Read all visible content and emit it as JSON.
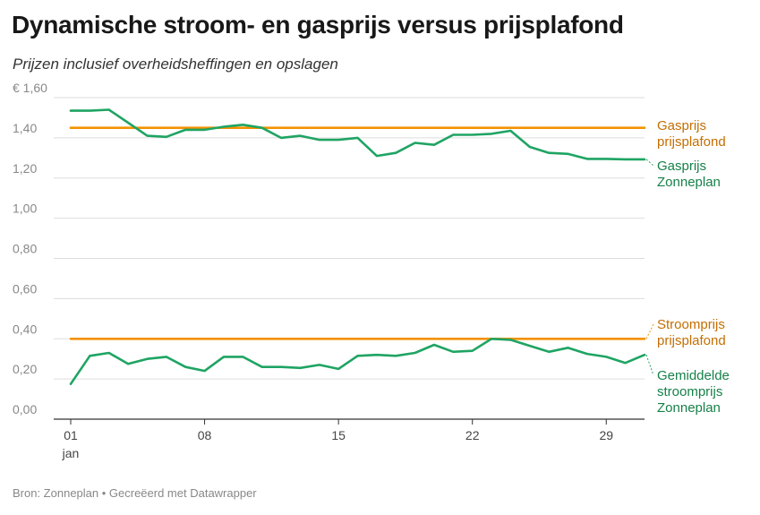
{
  "header": {
    "title": "Dynamische stroom- en gasprijs versus prijsplafond",
    "subtitle": "Prijzen inclusief overheidsheffingen en opslagen"
  },
  "footer": {
    "source": "Bron: Zonneplan • Gecreëerd met Datawrapper"
  },
  "colors": {
    "cap": "#f39200",
    "cap_label": "#c46e00",
    "zonneplan": "#1fa463",
    "zonneplan_label": "#168049",
    "grid": "#dddddd",
    "baseline": "#333333"
  },
  "chart_data": {
    "type": "line",
    "title": "Dynamische stroom- en gasprijs versus prijsplafond",
    "subtitle": "Prijzen inclusief overheidsheffingen en opslagen",
    "x": [
      1,
      2,
      3,
      4,
      5,
      6,
      7,
      8,
      9,
      10,
      11,
      12,
      13,
      14,
      15,
      16,
      17,
      18,
      19,
      20,
      21,
      22,
      23,
      24,
      25,
      26,
      27,
      28,
      29,
      30,
      31
    ],
    "xlim": [
      1,
      31
    ],
    "ylim": [
      0,
      1.6
    ],
    "grid": true,
    "legend": "direct labels at right",
    "x_ticks": [
      {
        "value": 1,
        "label": "01",
        "sublabel": "jan"
      },
      {
        "value": 8,
        "label": "08"
      },
      {
        "value": 15,
        "label": "15"
      },
      {
        "value": 22,
        "label": "22"
      },
      {
        "value": 29,
        "label": "29"
      }
    ],
    "y_ticks": [
      {
        "value": 0,
        "label": "0,00"
      },
      {
        "value": 0.2,
        "label": "0,20"
      },
      {
        "value": 0.4,
        "label": "0,40"
      },
      {
        "value": 0.6,
        "label": "0,60"
      },
      {
        "value": 0.8,
        "label": "0,80"
      },
      {
        "value": 1.0,
        "label": "1,00"
      },
      {
        "value": 1.2,
        "label": "1,20"
      },
      {
        "value": 1.4,
        "label": "1,40"
      },
      {
        "value": 1.6,
        "label": "€ 1,60"
      }
    ],
    "series": [
      {
        "name": "Gasprijs prijsplafond",
        "label_lines": [
          "Gasprijs",
          "prijsplafond"
        ],
        "color": "#f39200",
        "values": [
          1.45,
          1.45,
          1.45,
          1.45,
          1.45,
          1.45,
          1.45,
          1.45,
          1.45,
          1.45,
          1.45,
          1.45,
          1.45,
          1.45,
          1.45,
          1.45,
          1.45,
          1.45,
          1.45,
          1.45,
          1.45,
          1.45,
          1.45,
          1.45,
          1.45,
          1.45,
          1.45,
          1.45,
          1.45,
          1.45,
          1.45
        ]
      },
      {
        "name": "Gasprijs Zonneplan",
        "label_lines": [
          "Gasprijs",
          "Zonneplan"
        ],
        "color": "#1fa463",
        "values": [
          1.535,
          1.535,
          1.54,
          1.475,
          1.41,
          1.405,
          1.44,
          1.44,
          1.455,
          1.465,
          1.45,
          1.4,
          1.41,
          1.39,
          1.39,
          1.4,
          1.31,
          1.325,
          1.375,
          1.365,
          1.415,
          1.415,
          1.42,
          1.435,
          1.355,
          1.325,
          1.32,
          1.295,
          1.295,
          1.293,
          1.293
        ]
      },
      {
        "name": "Stroomprijs prijsplafond",
        "label_lines": [
          "Stroomprijs",
          "prijsplafond"
        ],
        "color": "#f39200",
        "values": [
          0.4,
          0.4,
          0.4,
          0.4,
          0.4,
          0.4,
          0.4,
          0.4,
          0.4,
          0.4,
          0.4,
          0.4,
          0.4,
          0.4,
          0.4,
          0.4,
          0.4,
          0.4,
          0.4,
          0.4,
          0.4,
          0.4,
          0.4,
          0.4,
          0.4,
          0.4,
          0.4,
          0.4,
          0.4,
          0.4,
          0.4
        ]
      },
      {
        "name": "Gemiddelde stroomprijs Zonneplan",
        "label_lines": [
          "Gemiddelde",
          "stroomprijs",
          "Zonneplan"
        ],
        "color": "#1fa463",
        "values": [
          0.175,
          0.315,
          0.33,
          0.275,
          0.3,
          0.31,
          0.26,
          0.24,
          0.31,
          0.31,
          0.26,
          0.26,
          0.255,
          0.27,
          0.25,
          0.315,
          0.32,
          0.315,
          0.33,
          0.37,
          0.335,
          0.34,
          0.4,
          0.395,
          0.365,
          0.335,
          0.355,
          0.325,
          0.31,
          0.28,
          0.32
        ]
      }
    ]
  }
}
